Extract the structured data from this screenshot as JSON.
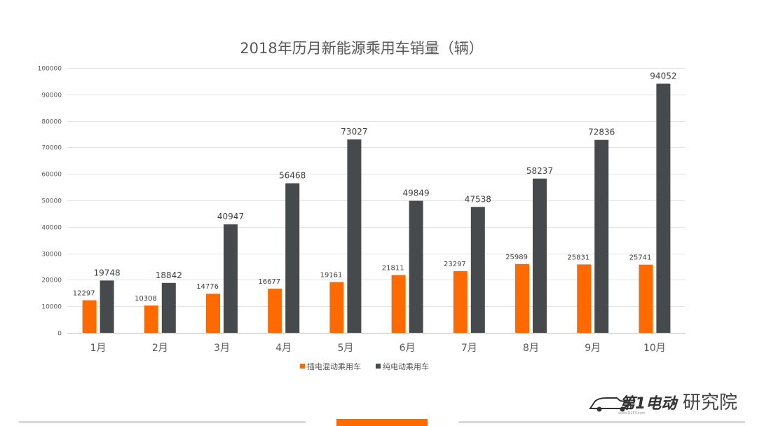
{
  "chart_data": {
    "type": "bar",
    "title": "2018年历月新能源乘用车销量（辆）",
    "xlabel": "",
    "ylabel": "",
    "categories": [
      "1月",
      "2月",
      "3月",
      "4月",
      "5月",
      "6月",
      "7月",
      "8月",
      "9月",
      "10月"
    ],
    "series": [
      {
        "name": "插电混动乘用车",
        "color": "#FF6A00",
        "values": [
          12297,
          10308,
          14776,
          16677,
          19161,
          21811,
          23297,
          25989,
          25831,
          25741
        ]
      },
      {
        "name": "纯电动乘用车",
        "color": "#464A4C",
        "values": [
          19748,
          18842,
          40947,
          56468,
          73027,
          49849,
          47538,
          58237,
          72836,
          94052
        ]
      }
    ],
    "ylim": [
      0,
      100000
    ],
    "yticks": [
      0,
      10000,
      20000,
      30000,
      40000,
      50000,
      60000,
      70000,
      80000,
      90000,
      100000
    ],
    "grid": true,
    "legend_position": "bottom"
  },
  "brand": {
    "logo_text": "第1电动",
    "logo_sub": "www.D1EV.com",
    "separator": "•",
    "suffix": "研究院"
  },
  "colors": {
    "accent": "#FF6A00",
    "footer_line": "#D9D9D9"
  }
}
